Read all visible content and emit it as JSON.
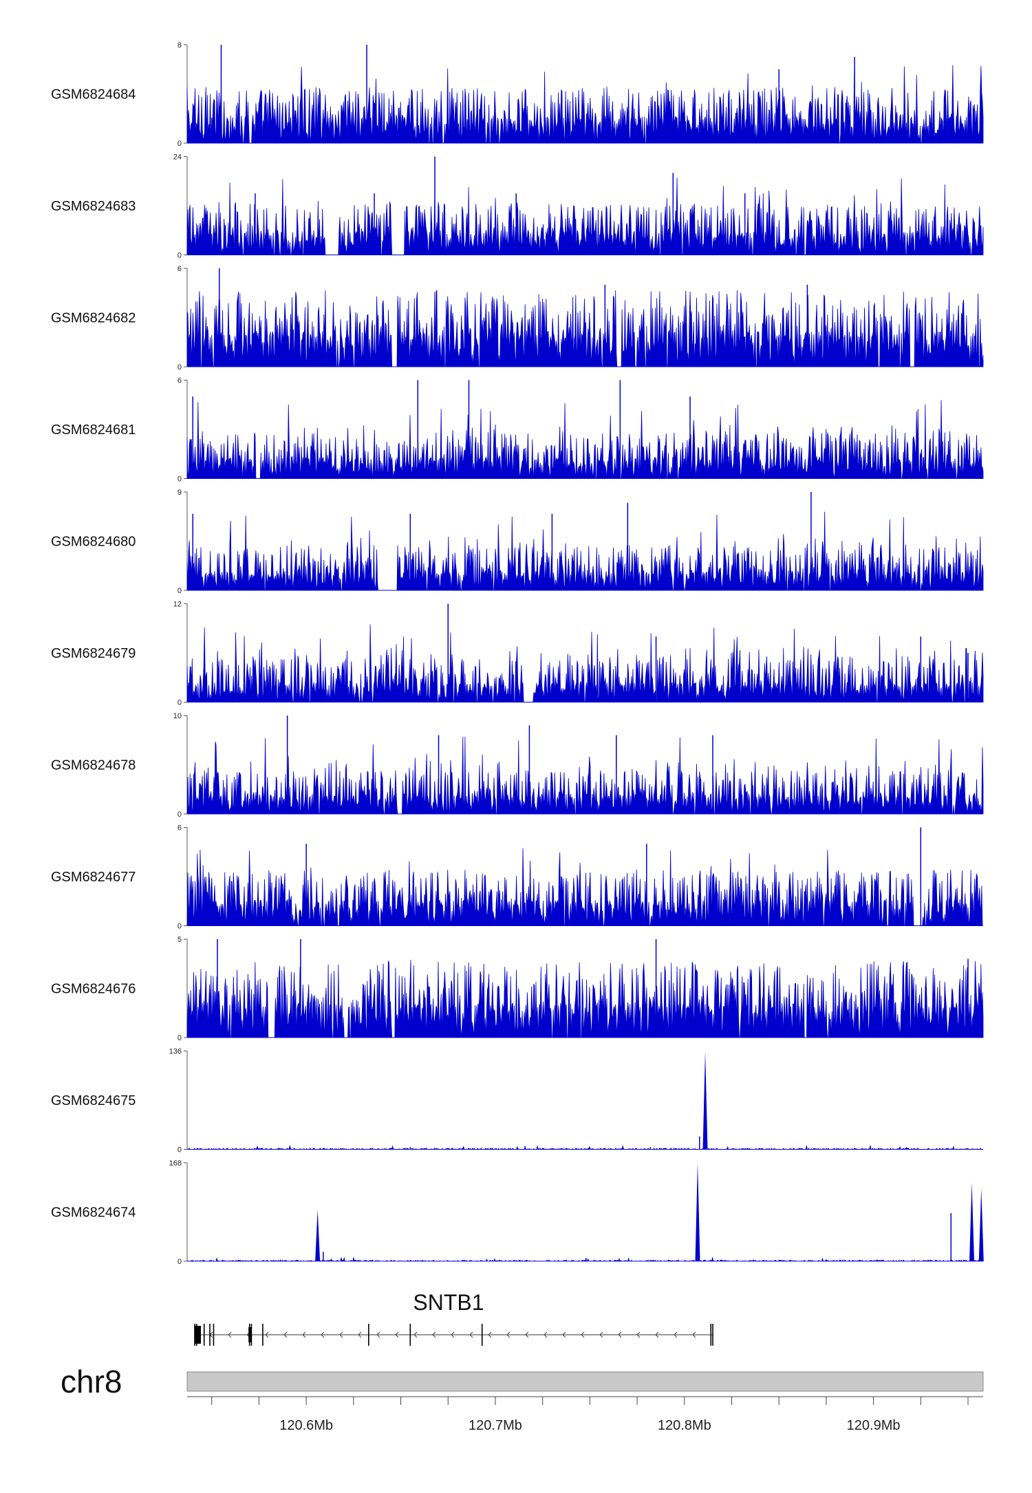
{
  "chart_data": {
    "type": "area",
    "title": "",
    "chromosome": "chr8",
    "gene": {
      "name": "SNTB1",
      "strand": "-",
      "start": 120.541,
      "end": 120.815
    },
    "xlim": [
      120.537,
      120.958
    ],
    "xticks": [
      120.6,
      120.7,
      120.8,
      120.9
    ],
    "xticklabels": [
      "120.6Mb",
      "120.7Mb",
      "120.8Mb",
      "120.9Mb"
    ],
    "colors": {
      "signal": "#0000cd",
      "ideogram": "#c8c8c8",
      "text": "#111111"
    },
    "tracks": [
      {
        "name": "GSM6824684",
        "ymax": 8,
        "kind": "noise",
        "base": 0.22,
        "spikes": [
          [
            120.555,
            8
          ],
          [
            120.632,
            8
          ],
          [
            120.85,
            6
          ],
          [
            120.89,
            7
          ]
        ],
        "gaps": []
      },
      {
        "name": "GSM6824683",
        "ymax": 24,
        "kind": "noise",
        "base": 0.2,
        "spikes": [
          [
            120.668,
            24
          ],
          [
            120.794,
            20
          ],
          [
            120.573,
            15
          ],
          [
            120.636,
            15
          ],
          [
            120.711,
            15
          ],
          [
            120.832,
            15
          ]
        ],
        "gaps": [
          [
            120.61,
            120.617
          ],
          [
            120.645,
            120.652
          ]
        ]
      },
      {
        "name": "GSM6824682",
        "ymax": 6,
        "kind": "noise",
        "base": 0.3,
        "spikes": [
          [
            120.554,
            6
          ],
          [
            120.758,
            5
          ],
          [
            120.865,
            5
          ]
        ],
        "gaps": [
          [
            120.645,
            120.648
          ],
          [
            120.764,
            120.767
          ],
          [
            120.919,
            120.922
          ]
        ]
      },
      {
        "name": "GSM6824681",
        "ymax": 6,
        "kind": "noise",
        "base": 0.18,
        "spikes": [
          [
            120.659,
            6
          ],
          [
            120.686,
            6
          ],
          [
            120.766,
            6
          ],
          [
            120.803,
            5
          ],
          [
            120.54,
            5
          ]
        ],
        "gaps": [
          [
            120.573,
            120.576
          ]
        ]
      },
      {
        "name": "GSM6824680",
        "ymax": 9,
        "kind": "noise",
        "base": 0.17,
        "spikes": [
          [
            120.867,
            9
          ],
          [
            120.77,
            8
          ],
          [
            120.54,
            7
          ],
          [
            120.655,
            7
          ],
          [
            120.73,
            7
          ]
        ],
        "gaps": [
          [
            120.638,
            120.648
          ]
        ]
      },
      {
        "name": "GSM6824679",
        "ymax": 12,
        "kind": "noise",
        "base": 0.17,
        "spikes": [
          [
            120.675,
            12
          ],
          [
            120.785,
            8
          ],
          [
            120.925,
            8
          ],
          [
            120.95,
            6
          ]
        ],
        "gaps": [
          [
            120.715,
            120.72
          ]
        ]
      },
      {
        "name": "GSM6824678",
        "ymax": 10,
        "kind": "noise",
        "base": 0.17,
        "spikes": [
          [
            120.59,
            10
          ],
          [
            120.718,
            9
          ],
          [
            120.815,
            8
          ],
          [
            120.764,
            8
          ],
          [
            120.67,
            8
          ]
        ],
        "gaps": [
          [
            120.648,
            120.651
          ]
        ]
      },
      {
        "name": "GSM6824677",
        "ymax": 6,
        "kind": "noise",
        "base": 0.22,
        "spikes": [
          [
            120.925,
            6
          ],
          [
            120.6,
            5
          ],
          [
            120.78,
            5
          ]
        ],
        "gaps": [
          [
            120.921,
            120.926
          ]
        ]
      },
      {
        "name": "GSM6824676",
        "ymax": 5,
        "kind": "noise",
        "base": 0.3,
        "spikes": [
          [
            120.553,
            5
          ],
          [
            120.785,
            5
          ],
          [
            120.597,
            5
          ],
          [
            120.95,
            4
          ]
        ],
        "gaps": [
          [
            120.58,
            120.583
          ],
          [
            120.62,
            120.622
          ],
          [
            120.645,
            120.647
          ]
        ]
      },
      {
        "name": "GSM6824675",
        "ymax": 136,
        "kind": "peaky",
        "base": 0.006,
        "spikes": [
          [
            120.811,
            136
          ],
          [
            120.808,
            18
          ],
          [
            120.782,
            3
          ],
          [
            120.655,
            3
          ]
        ],
        "gaps": []
      },
      {
        "name": "GSM6824674",
        "ymax": 168,
        "kind": "peaky",
        "base": 0.006,
        "spikes": [
          [
            120.807,
            168
          ],
          [
            120.606,
            88
          ],
          [
            120.609,
            16
          ],
          [
            120.941,
            82
          ],
          [
            120.952,
            134
          ],
          [
            120.957,
            124
          ],
          [
            120.748,
            5
          ],
          [
            120.875,
            3
          ]
        ],
        "gaps": []
      }
    ],
    "exons": [
      120.541,
      120.542,
      120.546,
      120.549,
      120.551,
      120.57,
      120.571,
      120.577,
      120.633,
      120.655,
      120.693,
      120.814,
      120.815
    ]
  }
}
